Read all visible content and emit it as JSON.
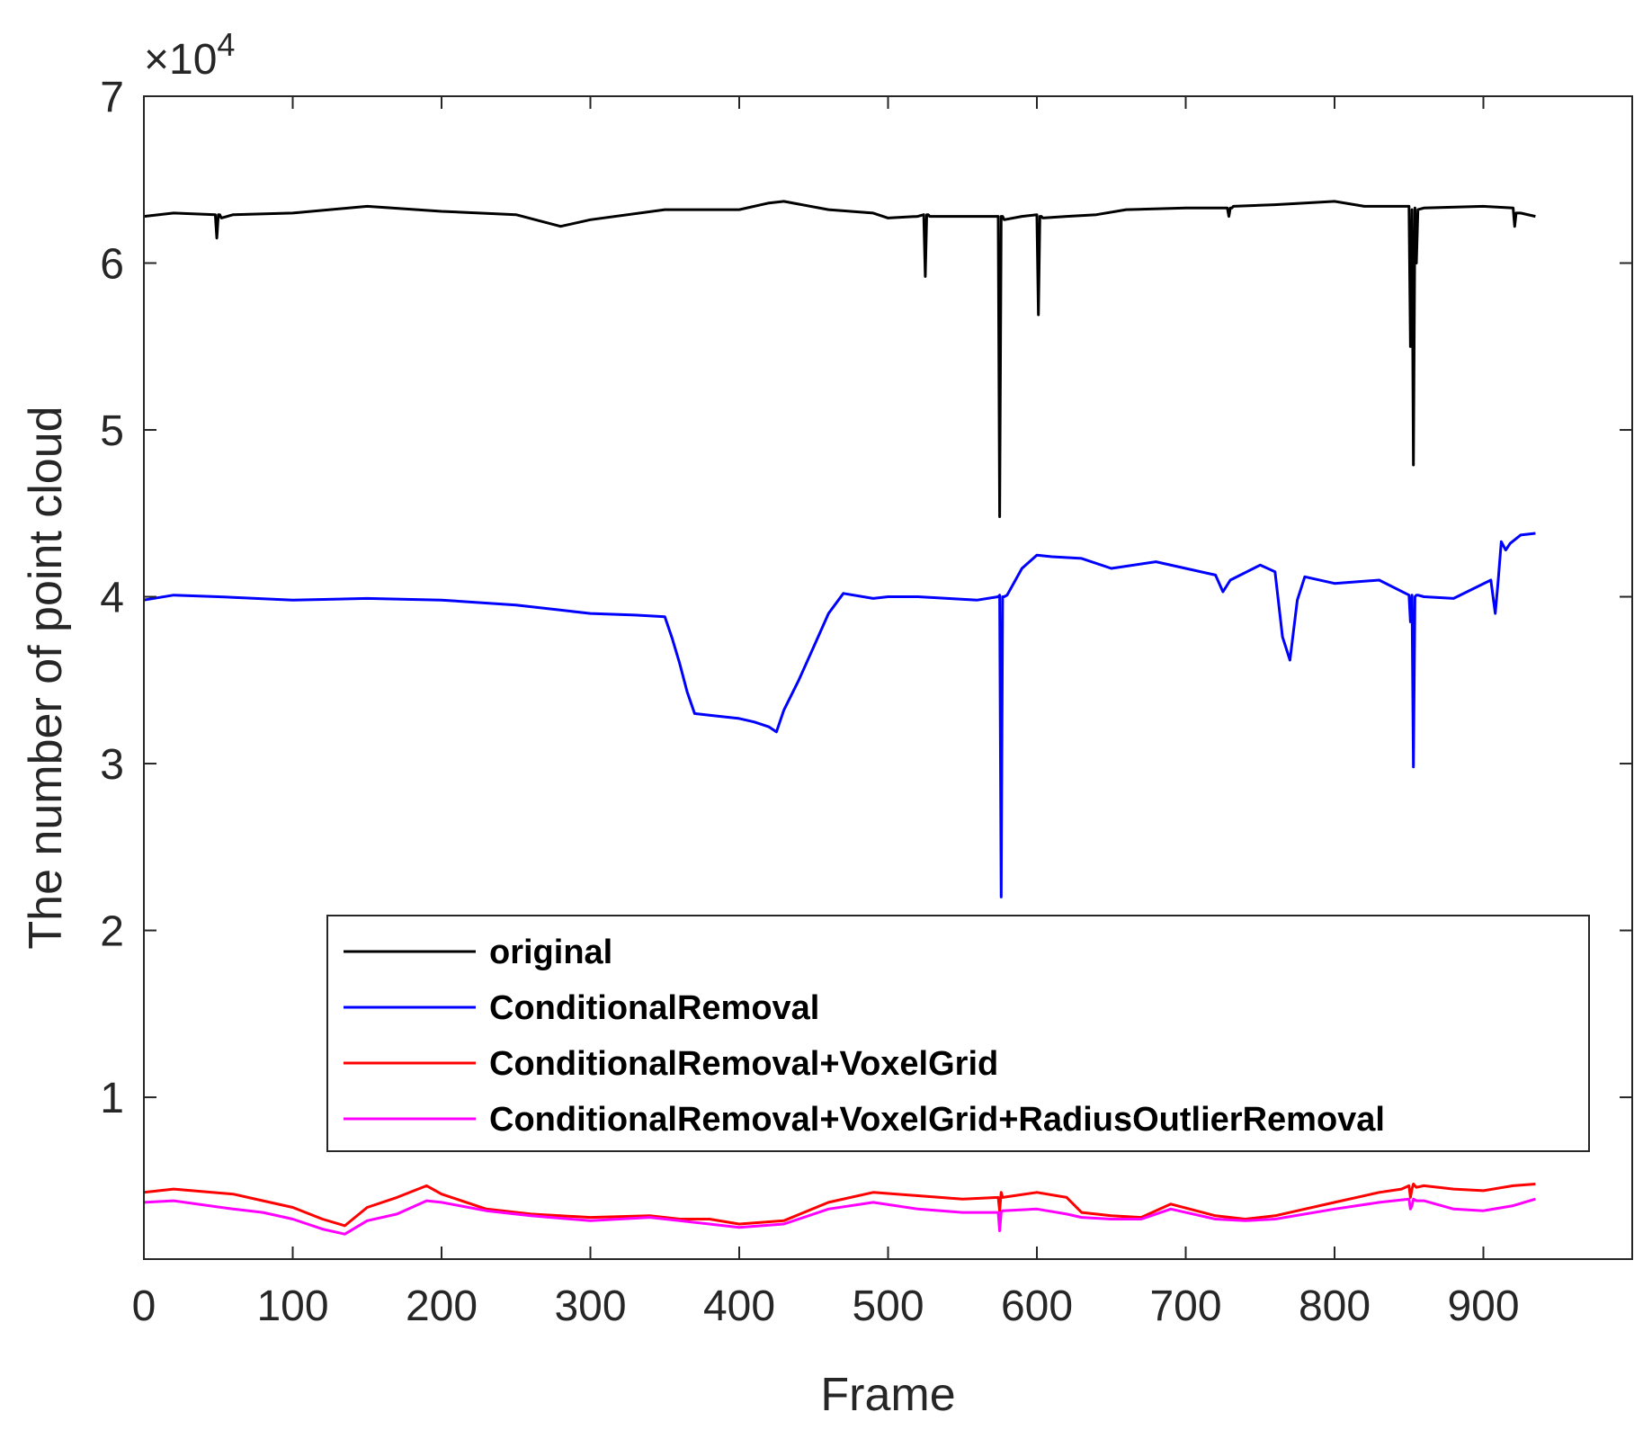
{
  "chart_data": {
    "type": "line",
    "title": "",
    "xlabel": "Frame",
    "ylabel": "The number of point cloud",
    "exponent_base": "×10",
    "exponent_power": "4",
    "xlim": [
      0,
      1000
    ],
    "ylim": [
      300,
      70000
    ],
    "xticks": [
      0,
      100,
      200,
      300,
      400,
      500,
      600,
      700,
      800,
      900
    ],
    "xtick_labels": [
      "0",
      "100",
      "200",
      "300",
      "400",
      "500",
      "600",
      "700",
      "800",
      "900"
    ],
    "yticks": [
      10000,
      20000,
      30000,
      40000,
      50000,
      60000,
      70000
    ],
    "ytick_labels": [
      "1",
      "2",
      "3",
      "4",
      "5",
      "6",
      "7"
    ],
    "grid": false,
    "legend_position": "lower-right",
    "series": [
      {
        "name": "original",
        "color": "#000000",
        "x": [
          0,
          20,
          48,
          49,
          50,
          51,
          52,
          60,
          100,
          150,
          200,
          250,
          280,
          300,
          350,
          400,
          420,
          430,
          460,
          490,
          500,
          520,
          524,
          525,
          526,
          527,
          528,
          540,
          574,
          575,
          576,
          577,
          578,
          590,
          600,
          601,
          602,
          603,
          604,
          620,
          640,
          660,
          700,
          728,
          729,
          730,
          731,
          732,
          760,
          800,
          820,
          850,
          851,
          852,
          853,
          854,
          855,
          856,
          860,
          900,
          920,
          921,
          922,
          925,
          935
        ],
        "y": [
          62800,
          63000,
          62900,
          61500,
          62900,
          62900,
          62700,
          62900,
          63000,
          63400,
          63100,
          62900,
          62200,
          62600,
          63200,
          63200,
          63600,
          63700,
          63200,
          63000,
          62700,
          62800,
          62900,
          59200,
          62900,
          62900,
          62800,
          62800,
          62800,
          44800,
          62800,
          62800,
          62600,
          62800,
          62900,
          56900,
          62800,
          62800,
          62700,
          62800,
          62900,
          63200,
          63300,
          63300,
          62800,
          63300,
          63300,
          63400,
          63500,
          63700,
          63400,
          63400,
          55000,
          63200,
          47900,
          63300,
          60000,
          63200,
          63300,
          63400,
          63300,
          62200,
          63000,
          63000,
          62800
        ]
      },
      {
        "name": "ConditionalRemoval",
        "color": "#0000ff",
        "x": [
          0,
          20,
          50,
          100,
          150,
          200,
          250,
          300,
          330,
          350,
          355,
          360,
          365,
          370,
          380,
          400,
          410,
          420,
          425,
          430,
          440,
          450,
          460,
          470,
          490,
          500,
          520,
          540,
          560,
          574,
          575,
          576,
          577,
          578,
          580,
          590,
          600,
          610,
          630,
          650,
          680,
          700,
          720,
          725,
          730,
          750,
          760,
          765,
          770,
          775,
          780,
          800,
          830,
          850,
          851,
          852,
          853,
          854,
          855,
          856,
          860,
          880,
          905,
          908,
          910,
          912,
          915,
          918,
          925,
          935
        ],
        "y": [
          39800,
          40100,
          40000,
          39800,
          39900,
          39800,
          39500,
          39000,
          38900,
          38800,
          37500,
          36000,
          34300,
          33000,
          32900,
          32700,
          32500,
          32200,
          31900,
          33200,
          35000,
          37000,
          39000,
          40200,
          39900,
          40000,
          40000,
          39900,
          39800,
          40000,
          40100,
          22000,
          40000,
          40000,
          40100,
          41700,
          42500,
          42400,
          42300,
          41700,
          42100,
          41700,
          41300,
          40300,
          41000,
          41900,
          41500,
          37600,
          36200,
          39800,
          41200,
          40800,
          41000,
          40100,
          38500,
          40100,
          29800,
          40000,
          40100,
          40100,
          40000,
          39900,
          41000,
          39000,
          41000,
          43300,
          42800,
          43200,
          43700,
          43800
        ]
      },
      {
        "name": "ConditionalRemoval+VoxelGrid",
        "color": "#ff0000",
        "x": [
          0,
          20,
          60,
          80,
          100,
          120,
          135,
          150,
          170,
          190,
          200,
          230,
          260,
          300,
          340,
          360,
          380,
          400,
          430,
          460,
          490,
          520,
          550,
          574,
          575,
          576,
          577,
          600,
          620,
          630,
          650,
          670,
          690,
          720,
          740,
          760,
          800,
          830,
          845,
          850,
          851,
          852,
          853,
          855,
          860,
          880,
          900,
          920,
          935
        ],
        "y": [
          4300,
          4500,
          4200,
          3800,
          3400,
          2700,
          2300,
          3400,
          4000,
          4700,
          4200,
          3300,
          3000,
          2800,
          2900,
          2700,
          2700,
          2400,
          2600,
          3700,
          4300,
          4100,
          3900,
          4000,
          3200,
          4300,
          4000,
          4300,
          4000,
          3100,
          2900,
          2800,
          3600,
          2900,
          2700,
          2900,
          3700,
          4300,
          4500,
          4700,
          4000,
          4500,
          4800,
          4600,
          4700,
          4500,
          4400,
          4700,
          4800
        ]
      },
      {
        "name": "ConditionalRemoval+VoxelGrid+RadiusOutlierRemoval",
        "color": "#ff00ff",
        "x": [
          0,
          20,
          60,
          80,
          100,
          120,
          135,
          150,
          170,
          190,
          200,
          230,
          260,
          300,
          340,
          360,
          380,
          400,
          430,
          460,
          490,
          520,
          550,
          574,
          575,
          576,
          577,
          600,
          620,
          630,
          650,
          670,
          690,
          720,
          740,
          760,
          800,
          830,
          850,
          851,
          852,
          853,
          855,
          860,
          880,
          900,
          920,
          935
        ],
        "y": [
          3700,
          3800,
          3300,
          3100,
          2700,
          2100,
          1800,
          2600,
          3000,
          3800,
          3700,
          3200,
          2900,
          2600,
          2800,
          2600,
          2400,
          2200,
          2400,
          3300,
          3700,
          3300,
          3100,
          3100,
          2000,
          3100,
          3200,
          3300,
          3000,
          2800,
          2700,
          2700,
          3300,
          2700,
          2600,
          2700,
          3300,
          3700,
          3900,
          3300,
          3500,
          3900,
          3800,
          3800,
          3300,
          3200,
          3500,
          3900
        ]
      }
    ]
  }
}
